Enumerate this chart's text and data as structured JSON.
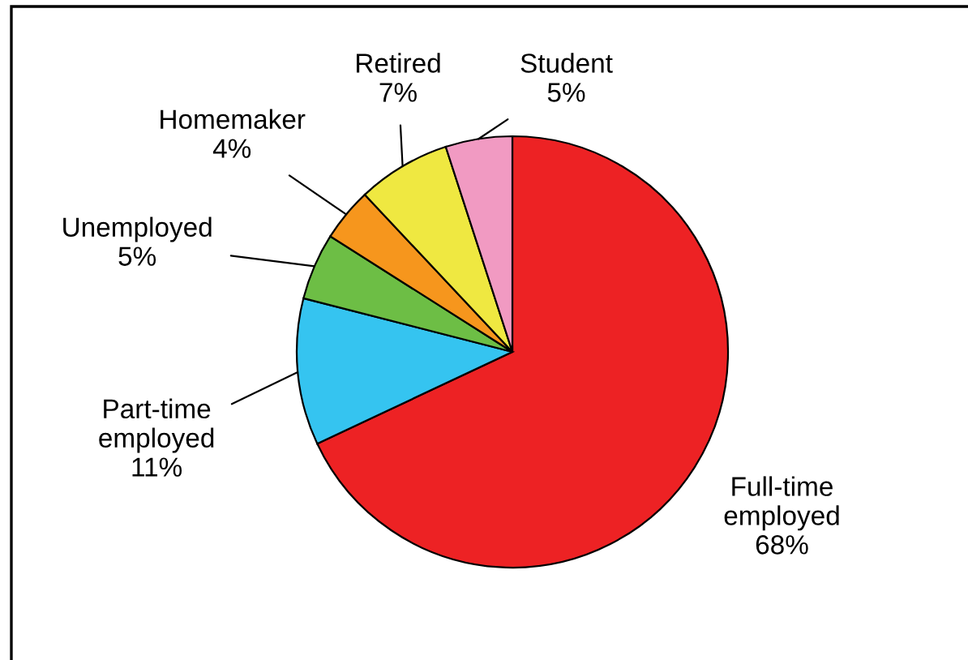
{
  "chart_data": {
    "type": "pie",
    "categories": [
      "Full-time\nemployed",
      "Part-time\nemployed",
      "Unemployed",
      "Homemaker",
      "Retired",
      "Student"
    ],
    "values": [
      68,
      11,
      5,
      4,
      7,
      5
    ],
    "value_labels": [
      "68%",
      "11%",
      "5%",
      "4%",
      "7%",
      "5%"
    ],
    "colors": [
      "#ed2224",
      "#35c4f0",
      "#6dbe45",
      "#f6961d",
      "#efe841",
      "#f19ac2"
    ],
    "legend": false
  }
}
